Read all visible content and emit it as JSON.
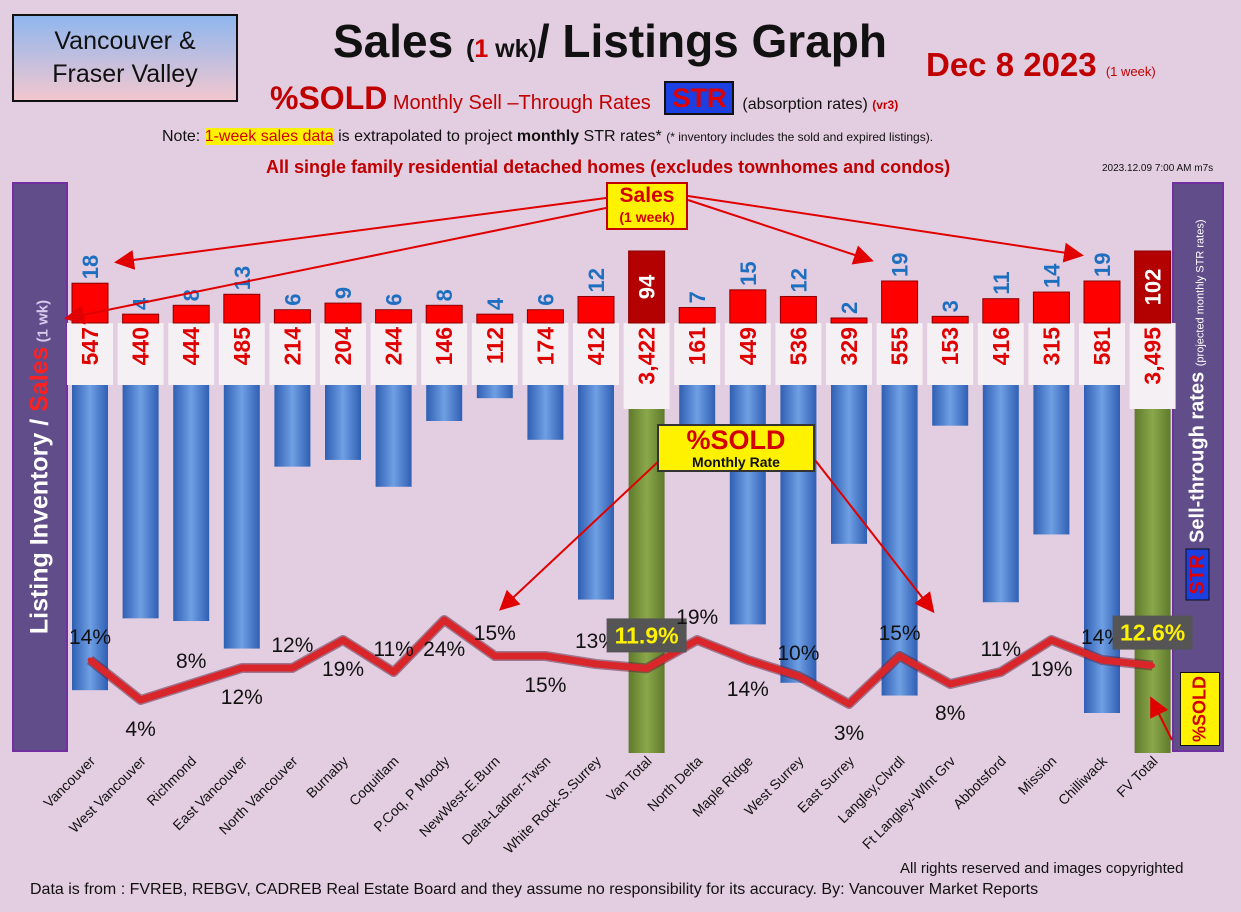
{
  "header": {
    "region_line1": "Vancouver &",
    "region_line2": "Fraser Valley",
    "title_a": "Sales ",
    "title_b": "(",
    "title_c": "1",
    "title_d": " wk)",
    "title_e": "/ Listings Graph",
    "date": "Dec 8  2023 ",
    "date_note": "(1 week)",
    "sub_sold": "%SOLD",
    "sub_desc": " Monthly Sell –Through Rates ",
    "sub_str": "STR",
    "sub_abs": "(absorption rates) ",
    "sub_ver": "(vr3)",
    "note_a": "Note: ",
    "note_hl": "1-week sales data",
    "note_b": " is extrapolated to project ",
    "note_bold": "monthly",
    "note_c": " STR rates* ",
    "note_small": "(* inventory includes the sold and expired listings).",
    "homes": "All single family residential detached homes (excludes townhomes and condos)",
    "stamp": "2023.12.09 7:00 AM m7s"
  },
  "side": {
    "left_a": "Listing Inventory ",
    "left_slash": "/ ",
    "left_sales": "Sales",
    "left_wk": " (1 wk)",
    "right_str": "STR",
    "right_text": " Sell-through rates ",
    "right_proj": "(projected monthly STR rates)",
    "right_sold": "%SOLD"
  },
  "callouts": {
    "sales_l1": "Sales",
    "sales_l2": "(1 week)",
    "sold_l1": "%SOLD",
    "sold_l2": "Monthly Rate"
  },
  "footer": {
    "copyright": "All rights reserved and  images copyrighted",
    "source": "Data is from : FVREB, REBGV, CADREB Real Estate Board and they assume no responsibility for its accuracy. By: Vancouver Market Reports"
  },
  "colors": {
    "inventory_bar": "#4f7fd0",
    "total_bar": "#77933c",
    "sales_bar": "#ff0000",
    "total_sales_bar": "#b30000",
    "sales_label": "#1f6fc0",
    "str_line": "#d9262a",
    "panel": "#604d8a"
  },
  "chart_data": {
    "type": "bar",
    "categories": [
      "Vancouver",
      "West Vancouver",
      "Richmond",
      "East Vancouver",
      "North Vancouver",
      "Burnaby",
      "Coquitlam",
      "P.Coq, P Moody",
      "NewWest-E.Burn",
      "Delta-Ladner-Twsn",
      "White Rock-S.Surrey",
      "Van Total",
      "North Delta",
      "Maple Ridge",
      "West Surrey",
      "East Surrey",
      "Langley,Clvrdl",
      "Ft Langley-Wlnt Grv",
      "Abbotsford",
      "Mission",
      "Chilliwack",
      "FV Total"
    ],
    "series": [
      {
        "name": "Sales",
        "values": [
          18,
          4,
          8,
          13,
          6,
          9,
          6,
          8,
          4,
          6,
          12,
          94,
          7,
          15,
          12,
          2,
          19,
          3,
          11,
          14,
          19,
          102
        ]
      },
      {
        "name": "Listing Inventory",
        "values": [
          547,
          440,
          444,
          485,
          214,
          204,
          244,
          146,
          112,
          174,
          412,
          3422,
          161,
          449,
          536,
          329,
          555,
          153,
          416,
          315,
          581,
          3495
        ]
      },
      {
        "name": "%SOLD",
        "values": [
          14,
          4,
          8,
          12,
          12,
          19,
          11,
          24,
          15,
          15,
          13,
          11.9,
          19,
          14,
          10,
          3,
          15,
          8,
          11,
          19,
          14,
          12.6
        ]
      }
    ],
    "inventory_labels": [
      "547",
      "440",
      "444",
      "485",
      "214",
      "204",
      "244",
      "146",
      "112",
      "174",
      "412",
      "3,422",
      "161",
      "449",
      "536",
      "329",
      "555",
      "153",
      "416",
      "315",
      "581",
      "3,495"
    ],
    "str_labels": [
      "14%",
      "4%",
      "8%",
      "12%",
      "12%",
      "19%",
      "11%",
      "24%",
      "15%",
      "15%",
      "13%",
      "11.9%",
      "19%",
      "14%",
      "10%",
      "3%",
      "15%",
      "8%",
      "11%",
      "19%",
      "14%",
      "12.6%"
    ],
    "totals": [
      "Van Total",
      "FV Total"
    ],
    "grid": false
  }
}
